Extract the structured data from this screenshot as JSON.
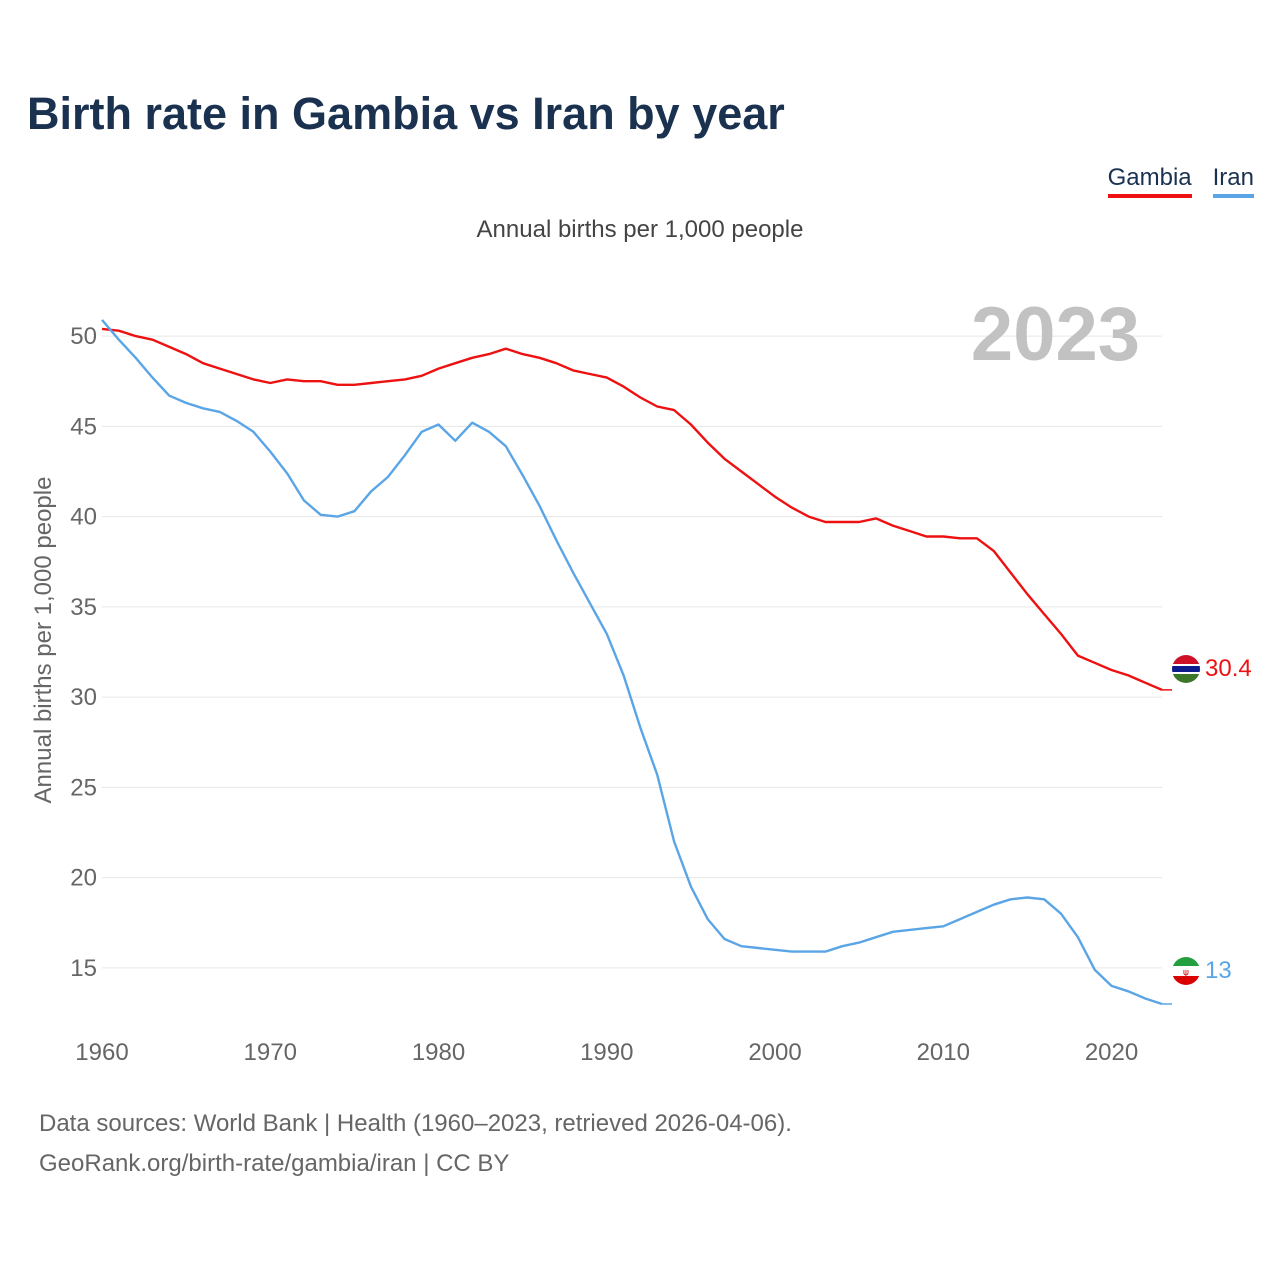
{
  "header": {
    "title": "Birth rate in Gambia vs Iran by year",
    "subtitle": "Annual births per 1,000 people"
  },
  "legend": {
    "items": [
      {
        "label": "Gambia",
        "color": "#ee1111"
      },
      {
        "label": "Iran",
        "color": "#5aa5e6"
      }
    ]
  },
  "footer": {
    "source": "Data sources: World Bank | Health (1960–2023, retrieved 2026-04-06).",
    "credit": "GeoRank.org/birth-rate/gambia/iran | CC BY"
  },
  "chart_data": {
    "type": "line",
    "title": "Birth rate in Gambia vs Iran by year",
    "subtitle": "Annual births per 1,000 people",
    "xlabel": "",
    "ylabel": "Annual births per 1,000 people",
    "xlim": [
      1960,
      2023
    ],
    "ylim": [
      12,
      52
    ],
    "yticks": [
      15,
      20,
      25,
      30,
      35,
      40,
      45,
      50
    ],
    "xticks": [
      1960,
      1970,
      1980,
      1990,
      2000,
      2010,
      2020
    ],
    "grid": true,
    "year_label": "2023",
    "x": [
      1960,
      1961,
      1962,
      1963,
      1964,
      1965,
      1966,
      1967,
      1968,
      1969,
      1970,
      1971,
      1972,
      1973,
      1974,
      1975,
      1976,
      1977,
      1978,
      1979,
      1980,
      1981,
      1982,
      1983,
      1984,
      1985,
      1986,
      1987,
      1988,
      1989,
      1990,
      1991,
      1992,
      1993,
      1994,
      1995,
      1996,
      1997,
      1998,
      1999,
      2000,
      2001,
      2002,
      2003,
      2004,
      2005,
      2006,
      2007,
      2008,
      2009,
      2010,
      2011,
      2012,
      2013,
      2014,
      2015,
      2016,
      2017,
      2018,
      2019,
      2020,
      2021,
      2022,
      2023
    ],
    "series": [
      {
        "name": "Gambia",
        "color": "#ee1111",
        "end_label": "30.4",
        "values": [
          50.4,
          50.3,
          50.0,
          49.8,
          49.4,
          49.0,
          48.5,
          48.2,
          47.9,
          47.6,
          47.4,
          47.6,
          47.5,
          47.5,
          47.3,
          47.3,
          47.4,
          47.5,
          47.6,
          47.8,
          48.2,
          48.5,
          48.8,
          49.0,
          49.3,
          49.0,
          48.8,
          48.5,
          48.1,
          47.9,
          47.7,
          47.2,
          46.6,
          46.1,
          45.9,
          45.1,
          44.1,
          43.2,
          42.5,
          41.8,
          41.1,
          40.5,
          40.0,
          39.7,
          39.7,
          39.7,
          39.9,
          39.5,
          39.2,
          38.9,
          38.9,
          38.8,
          38.8,
          38.1,
          36.9,
          35.7,
          34.6,
          33.5,
          32.3,
          31.9,
          31.5,
          31.2,
          30.8,
          30.4
        ]
      },
      {
        "name": "Iran",
        "color": "#5aa5e6",
        "end_label": "13",
        "values": [
          50.9,
          49.8,
          48.8,
          47.7,
          46.7,
          46.3,
          46.0,
          45.8,
          45.3,
          44.7,
          43.6,
          42.4,
          40.9,
          40.1,
          40.0,
          40.3,
          41.4,
          42.2,
          43.4,
          44.7,
          45.1,
          44.2,
          45.2,
          44.7,
          43.9,
          42.3,
          40.6,
          38.7,
          36.9,
          35.2,
          33.5,
          31.2,
          28.3,
          25.7,
          22.0,
          19.5,
          17.7,
          16.6,
          16.2,
          16.1,
          16.0,
          15.9,
          15.9,
          15.9,
          16.2,
          16.4,
          16.7,
          17.0,
          17.1,
          17.2,
          17.3,
          17.7,
          18.1,
          18.5,
          18.8,
          18.9,
          18.8,
          18.0,
          16.7,
          14.9,
          14.0,
          13.7,
          13.3,
          13.0
        ]
      }
    ]
  }
}
